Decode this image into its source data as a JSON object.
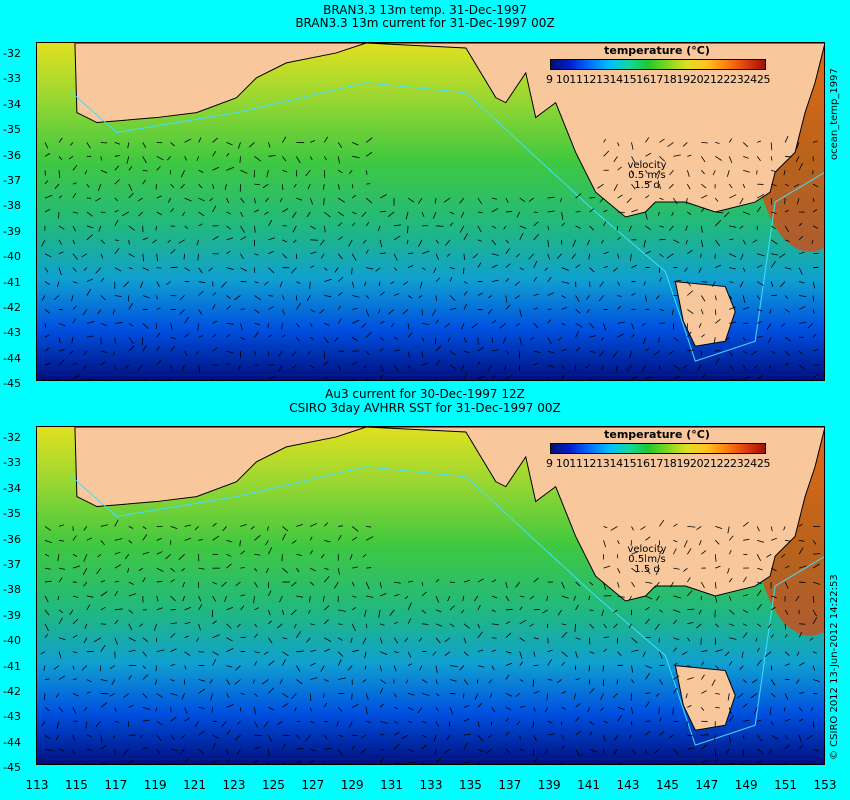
{
  "top_panel": {
    "title_line1": "BRAN3.3 13m temp. 31-Dec-1997",
    "title_line2": "BRAN3.3 13m current for 31-Dec-1997 00Z",
    "side_label": "ocean_temp_1997"
  },
  "bottom_panel": {
    "title_line1": "Au3 current for 30-Dec-1997 12Z",
    "title_line2": "CSIRO 3day AVHRR SST for 31-Dec-1997 00Z",
    "side_label": "© CSIRO 2012  13-Jun-2012 14:22:53"
  },
  "legend": {
    "title": "temperature (°C)",
    "labels": "9 10111213141516171819202122232425",
    "colors": [
      "#001070",
      "#0020d0",
      "#0070ff",
      "#00c0ff",
      "#10d8a0",
      "#20c830",
      "#80d820",
      "#e0e020",
      "#ffc020",
      "#ff8010",
      "#e04010",
      "#a01008"
    ]
  },
  "velocity": {
    "label": "velocity",
    "value": "0.5 m/s",
    "scale": "1.5 d"
  },
  "axes": {
    "lat_ticks": [
      "-32",
      "-33",
      "-34",
      "-35",
      "-36",
      "-37",
      "-38",
      "-39",
      "-40",
      "-41",
      "-42",
      "-43",
      "-44",
      "-45"
    ],
    "lon_ticks": [
      "113",
      "115",
      "117",
      "119",
      "121",
      "123",
      "125",
      "127",
      "129",
      "131",
      "133",
      "135",
      "137",
      "139",
      "141",
      "143",
      "145",
      "147",
      "149",
      "151",
      "153"
    ]
  },
  "colors": {
    "background": "#00ffff",
    "land": "#f8c89c"
  }
}
